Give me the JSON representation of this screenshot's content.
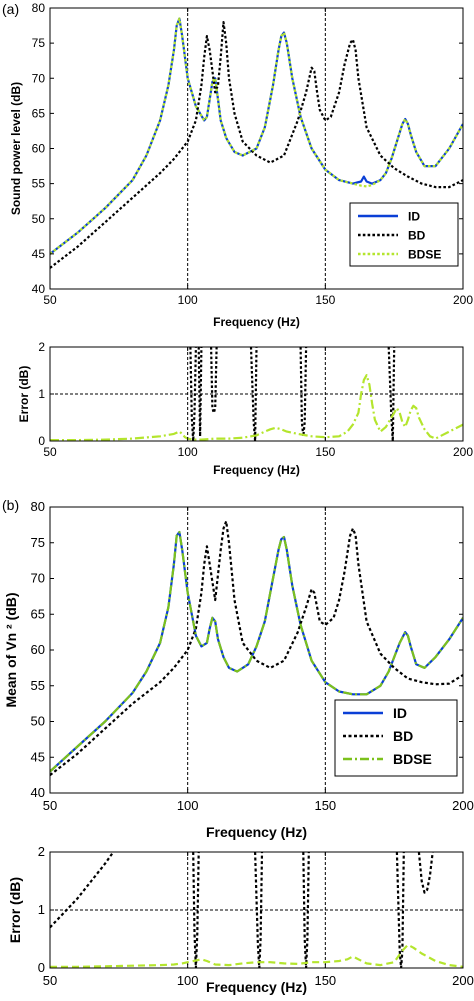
{
  "figure": {
    "panel_a": "(a)",
    "panel_b": "(b)"
  },
  "chart_data": [
    {
      "type": "line",
      "panel": "(a)",
      "xlabel": "Frequency  (Hz)",
      "ylabel": "Sound power level (dB)",
      "xlim": [
        50,
        200
      ],
      "ylim": [
        40,
        80
      ],
      "xticks": [
        50,
        100,
        150,
        200
      ],
      "yticks": [
        40,
        45,
        50,
        55,
        60,
        65,
        70,
        75,
        80
      ],
      "vlines": [
        100,
        150
      ],
      "legend": "lower-right",
      "series": [
        {
          "name": "ID",
          "color": "#0a3fd6",
          "style": "solid",
          "x": [
            50,
            60,
            70,
            80,
            85,
            90,
            93,
            95,
            96,
            97,
            98,
            100,
            103,
            106,
            107,
            108,
            109,
            110,
            111,
            112,
            114,
            117,
            120,
            125,
            128,
            131,
            133,
            134,
            135,
            136,
            138,
            141,
            145,
            150,
            155,
            160,
            163,
            164,
            165,
            167,
            170,
            172,
            174,
            176,
            178,
            179,
            180,
            181,
            183,
            186,
            190,
            195,
            200
          ],
          "y": [
            45,
            48,
            51.5,
            55.5,
            59,
            64,
            69,
            74,
            77.5,
            78.5,
            76,
            70,
            66,
            64,
            64.5,
            67,
            69.5,
            70,
            67,
            64,
            61.5,
            59.5,
            59,
            60,
            63,
            69,
            74,
            76,
            76.5,
            75,
            70,
            64.5,
            60,
            57,
            55.5,
            55,
            55.3,
            56,
            55.3,
            55,
            55.5,
            56.5,
            58.5,
            61,
            63.5,
            64.2,
            63.5,
            62,
            59.5,
            57.5,
            57.5,
            60,
            63.5
          ]
        },
        {
          "name": "BD",
          "color": "#000000",
          "style": "dotted",
          "x": [
            50,
            60,
            70,
            80,
            90,
            95,
            100,
            103,
            105,
            106,
            107,
            108,
            110,
            111,
            112,
            113,
            114,
            115,
            117,
            120,
            125,
            130,
            135,
            140,
            143,
            145,
            146,
            147,
            148,
            150,
            152,
            155,
            157,
            159,
            160,
            161,
            162,
            165,
            170,
            175,
            180,
            185,
            190,
            195,
            200
          ],
          "y": [
            43,
            46,
            49.5,
            53,
            56.5,
            58.5,
            61,
            64,
            69,
            73,
            76,
            74,
            68,
            69,
            73,
            78,
            75,
            70,
            65,
            61,
            59,
            58,
            59,
            64,
            68,
            71.5,
            71,
            68,
            65.5,
            64,
            64.5,
            68,
            72,
            75,
            75.5,
            74,
            70,
            63,
            59,
            57.2,
            56,
            55,
            54.5,
            54.5,
            55.5
          ]
        },
        {
          "name": "BDSE",
          "color": "#b4e52d",
          "style": "dotted",
          "x": [
            50,
            60,
            70,
            80,
            85,
            90,
            93,
            95,
            96,
            97,
            98,
            100,
            103,
            106,
            107,
            108,
            109,
            110,
            111,
            112,
            114,
            117,
            120,
            125,
            128,
            131,
            133,
            134,
            135,
            136,
            138,
            141,
            145,
            150,
            155,
            160,
            163,
            165,
            167,
            170,
            172,
            174,
            176,
            178,
            179,
            180,
            181,
            183,
            186,
            190,
            195,
            200
          ],
          "y": [
            45,
            48,
            51.5,
            55.5,
            59,
            64,
            69,
            74,
            77.5,
            78.5,
            76,
            70,
            66,
            64,
            64.5,
            67,
            69.5,
            70,
            67,
            64,
            61.5,
            59.5,
            59,
            60,
            63,
            69,
            74,
            76,
            76.5,
            75,
            70,
            64.5,
            60,
            57,
            55.5,
            55,
            54.7,
            54.6,
            54.8,
            55.5,
            56.5,
            58.5,
            61,
            63.5,
            64.2,
            63.5,
            62,
            59.5,
            57.5,
            57.5,
            60,
            63.5
          ]
        }
      ]
    },
    {
      "type": "line",
      "panel": "(a)",
      "xlabel": "Frequency  (Hz)",
      "ylabel": "Error  (dB)",
      "xlim": [
        50,
        200
      ],
      "ylim": [
        0,
        2
      ],
      "xticks": [
        50,
        100,
        150,
        200
      ],
      "yticks": [
        0,
        1,
        2
      ],
      "hlines": [
        1
      ],
      "vlines": [
        100,
        150
      ],
      "series": [
        {
          "name": "BD",
          "color": "#000000",
          "style": "dotted",
          "x": [
            [
              101,
              101.5,
              102,
              102.5,
              103
            ],
            [
              104,
              104.5,
              105
            ],
            [
              108.5,
              109,
              109.5,
              110,
              110.5
            ],
            [
              123,
              124,
              124.5,
              125
            ],
            [
              141,
              141.5,
              142,
              142.5,
              143
            ],
            [
              173,
              174,
              174.5,
              175
            ]
          ],
          "y": [
            [
              2,
              0.5,
              0,
              0.6,
              2
            ],
            [
              2,
              0.1,
              2
            ],
            [
              2,
              0.7,
              0.6,
              0.7,
              2
            ],
            [
              2,
              0.4,
              0,
              2
            ],
            [
              2,
              0.4,
              0.1,
              0.4,
              2
            ],
            [
              2,
              0.5,
              0,
              2
            ]
          ]
        },
        {
          "name": "BDSE",
          "color": "#b4e52d",
          "style": "dashdot",
          "x": [
            50,
            60,
            70,
            80,
            90,
            95,
            97,
            98,
            99,
            100,
            102,
            105,
            110,
            115,
            120,
            125,
            128,
            130,
            132,
            134,
            136,
            140,
            145,
            150,
            155,
            158,
            160,
            162,
            163,
            164,
            165,
            166,
            167,
            168,
            170,
            172,
            174,
            175,
            176,
            177,
            178,
            179,
            180,
            181,
            182,
            183,
            184,
            186,
            188,
            190,
            195,
            200
          ],
          "y": [
            0.02,
            0.02,
            0.03,
            0.05,
            0.1,
            0.15,
            0.2,
            0.15,
            0.08,
            0.05,
            0.03,
            0.03,
            0.05,
            0.05,
            0.07,
            0.12,
            0.2,
            0.25,
            0.28,
            0.25,
            0.2,
            0.15,
            0.1,
            0.08,
            0.1,
            0.2,
            0.35,
            0.6,
            1.0,
            1.3,
            1.4,
            1.2,
            0.8,
            0.45,
            0.2,
            0.3,
            0.5,
            0.6,
            0.7,
            0.6,
            0.4,
            0.3,
            0.45,
            0.65,
            0.75,
            0.7,
            0.5,
            0.25,
            0.1,
            0.05,
            0.2,
            0.35
          ]
        }
      ]
    },
    {
      "type": "line",
      "panel": "(b)",
      "xlabel": "Frequency (Hz)",
      "ylabel": "Mean of Vn ² (dB)",
      "xlim": [
        50,
        200
      ],
      "ylim": [
        40,
        80
      ],
      "xticks": [
        50,
        100,
        150,
        200
      ],
      "yticks": [
        40,
        45,
        50,
        55,
        60,
        65,
        70,
        75,
        80
      ],
      "vlines": [
        100,
        150
      ],
      "legend": "lower-right",
      "series": [
        {
          "name": "ID",
          "color": "#0a3fd6",
          "style": "solid",
          "x": [
            50,
            60,
            70,
            80,
            85,
            90,
            93,
            95,
            96,
            97,
            98,
            100,
            103,
            105,
            107,
            108,
            109,
            110,
            111,
            113,
            115,
            118,
            122,
            125,
            128,
            131,
            133,
            134,
            135,
            136,
            138,
            141,
            145,
            150,
            155,
            160,
            165,
            170,
            173,
            175,
            177,
            179,
            180,
            181,
            183,
            186,
            190,
            195,
            200
          ],
          "y": [
            43,
            46.5,
            50,
            54,
            57,
            61,
            66,
            72,
            76,
            76.5,
            74,
            68,
            62,
            60.5,
            61,
            63,
            64.5,
            64,
            61.5,
            59,
            57.5,
            57,
            58,
            60.5,
            64,
            70,
            74,
            75.5,
            75.8,
            74,
            69,
            63.5,
            58.5,
            55.5,
            54.2,
            53.8,
            53.8,
            55,
            57,
            59,
            61,
            62.5,
            62,
            60.5,
            58,
            57.5,
            59,
            61.5,
            64.5
          ]
        },
        {
          "name": "BD",
          "color": "#000000",
          "style": "dotted",
          "x": [
            50,
            60,
            70,
            80,
            90,
            95,
            100,
            103,
            105,
            106,
            107,
            108,
            110,
            112,
            113,
            114,
            115,
            117,
            120,
            125,
            130,
            135,
            140,
            143,
            145,
            146,
            147,
            148,
            150,
            153,
            155,
            157,
            159,
            160,
            161,
            162,
            165,
            170,
            175,
            180,
            185,
            190,
            195,
            200
          ],
          "y": [
            42.5,
            45.5,
            49,
            52.5,
            55.5,
            57.5,
            60,
            63,
            68,
            72,
            74.5,
            72,
            67,
            74,
            77,
            78,
            75,
            67,
            61,
            58.5,
            57.5,
            58.5,
            62.5,
            66,
            68.5,
            68,
            66,
            64,
            63.5,
            64.5,
            67,
            71,
            76,
            77,
            76,
            72,
            64,
            59.5,
            57.5,
            56,
            55.5,
            55.2,
            55.3,
            56.5
          ]
        },
        {
          "name": "BDSE",
          "color": "#7cc11c",
          "style": "dashdot",
          "x": [
            50,
            60,
            70,
            80,
            85,
            90,
            93,
            95,
            96,
            97,
            98,
            100,
            103,
            105,
            107,
            108,
            109,
            110,
            111,
            113,
            115,
            118,
            122,
            125,
            128,
            131,
            133,
            134,
            135,
            136,
            138,
            141,
            145,
            150,
            155,
            160,
            165,
            170,
            173,
            175,
            177,
            179,
            180,
            181,
            183,
            186,
            190,
            195,
            200
          ],
          "y": [
            43,
            46.5,
            50,
            54,
            57,
            61,
            66,
            72,
            76,
            76.5,
            74,
            68,
            62,
            60.5,
            61,
            63,
            64.5,
            64,
            61.5,
            59,
            57.5,
            57,
            58,
            60.5,
            64,
            70,
            74,
            75.5,
            75.8,
            74,
            69,
            63.5,
            58.5,
            55.5,
            54.2,
            53.8,
            53.8,
            55,
            57,
            59,
            61,
            62.5,
            62,
            60.5,
            58,
            57.5,
            59,
            61.5,
            64.5
          ]
        }
      ]
    },
    {
      "type": "line",
      "panel": "(b)",
      "xlabel": "Frequency (Hz)",
      "ylabel": "Error  (dB)",
      "xlim": [
        50,
        200
      ],
      "ylim": [
        0,
        2
      ],
      "xticks": [
        50,
        100,
        150,
        200
      ],
      "yticks": [
        0,
        1,
        2
      ],
      "hlines": [
        1
      ],
      "vlines": [
        100,
        150
      ],
      "series": [
        {
          "name": "BD",
          "color": "#000000",
          "style": "dotted",
          "x": [
            [
              50,
              55,
              60,
              65,
              70,
              73
            ],
            [
              102,
              102.5,
              103,
              103.5,
              104
            ],
            [
              124.5,
              125.5,
              126,
              126.5,
              127
            ],
            [
              142,
              142.5,
              143,
              143.5,
              144
            ],
            [
              176,
              177,
              177.5,
              178,
              178.5
            ],
            [
              184,
              185,
              186,
              187,
              188,
              189
            ]
          ],
          "y": [
            [
              0.7,
              0.95,
              1.2,
              1.5,
              1.8,
              2
            ],
            [
              2,
              0.6,
              0,
              0.6,
              2
            ],
            [
              2,
              0.4,
              0,
              0.5,
              2
            ],
            [
              2,
              0.5,
              0,
              0.5,
              2
            ],
            [
              2,
              0.3,
              0,
              0.3,
              2
            ],
            [
              2,
              1.5,
              1.3,
              1.35,
              1.6,
              2
            ]
          ]
        },
        {
          "name": "BDSE",
          "color": "#b4e52d",
          "style": "dashed",
          "x": [
            50,
            60,
            70,
            80,
            90,
            95,
            98,
            100,
            103,
            105,
            107,
            110,
            115,
            120,
            125,
            130,
            135,
            140,
            145,
            150,
            155,
            158,
            160,
            162,
            165,
            170,
            175,
            178,
            180,
            182,
            185,
            190,
            195,
            200
          ],
          "y": [
            0.02,
            0.02,
            0.03,
            0.04,
            0.05,
            0.06,
            0.08,
            0.1,
            0.13,
            0.15,
            0.12,
            0.06,
            0.05,
            0.08,
            0.1,
            0.1,
            0.08,
            0.07,
            0.1,
            0.1,
            0.12,
            0.15,
            0.2,
            0.15,
            0.08,
            0.05,
            0.1,
            0.3,
            0.4,
            0.35,
            0.25,
            0.12,
            0.05,
            0.02
          ]
        }
      ]
    }
  ]
}
